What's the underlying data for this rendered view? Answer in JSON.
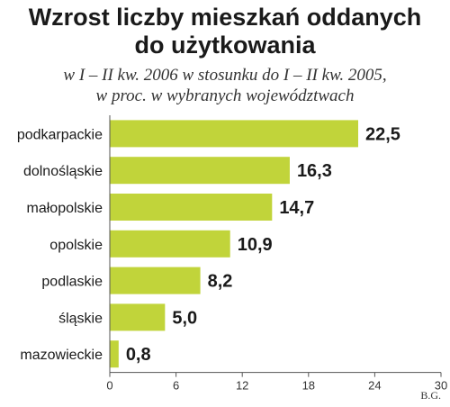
{
  "title_line1": "Wzrost liczby mieszkań oddanych",
  "title_line2": "do użytkowania",
  "subtitle_line1": "w I – II kw. 2006 w stosunku do I – II kw. 2005,",
  "subtitle_line2": "w proc. w wybranych województwach",
  "credit": "B.G.",
  "colors": {
    "bar": "#c1d43a",
    "axis": "#555555",
    "grid": "#d8d8d8"
  },
  "chart_data": {
    "type": "bar",
    "orientation": "horizontal",
    "title": "Wzrost liczby mieszkań oddanych do użytkowania",
    "subtitle": "w I – II kw. 2006 w stosunku do I – II kw. 2005, w proc. w wybranych województwach",
    "categories": [
      "podkarpackie",
      "dolnośląskie",
      "małopolskie",
      "opolskie",
      "podlaskie",
      "śląskie",
      "mazowieckie"
    ],
    "values": [
      22.5,
      16.3,
      14.7,
      10.9,
      8.2,
      5.0,
      0.8
    ],
    "value_labels": [
      "22,5",
      "16,3",
      "14,7",
      "10,9",
      "8,2",
      "5,0",
      "0,8"
    ],
    "xlim": [
      0,
      30
    ],
    "xticks": [
      0,
      6,
      12,
      18,
      24,
      30
    ],
    "grid": false
  }
}
